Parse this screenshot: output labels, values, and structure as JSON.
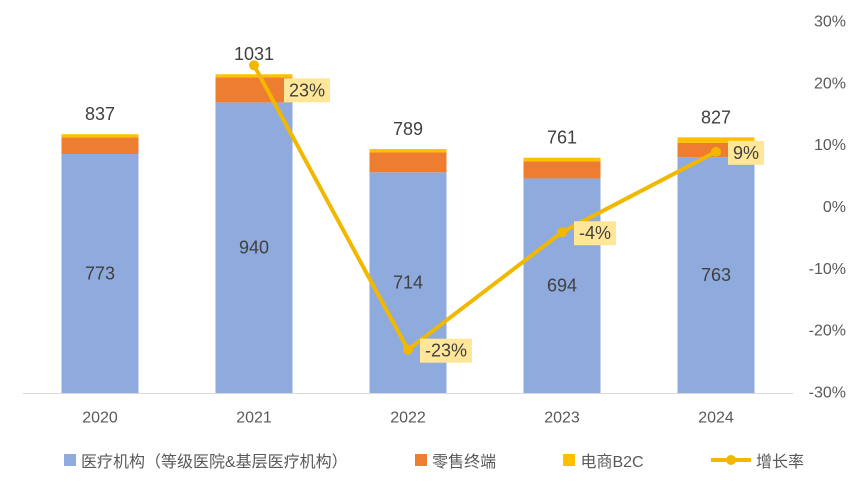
{
  "chart_data": {
    "type": "bar",
    "stacked": true,
    "categories": [
      "2020",
      "2021",
      "2022",
      "2023",
      "2024"
    ],
    "series": [
      {
        "name": "医疗机构（等级医院&基层医疗机构）",
        "type": "bar",
        "values": [
          773,
          940,
          714,
          694,
          763
        ],
        "color": "#8FAADC",
        "show_labels": true
      },
      {
        "name": "零售终端",
        "type": "bar",
        "values": [
          54,
          81,
          64,
          55,
          46
        ],
        "color": "#ED7D31"
      },
      {
        "name": "电商B2C",
        "type": "bar",
        "values": [
          10,
          10,
          11,
          12,
          18
        ],
        "color": "#FFC000"
      },
      {
        "name": "增长率",
        "type": "line",
        "axis": "right",
        "unit": "%",
        "values": [
          null,
          23,
          -23,
          -4,
          9
        ],
        "color": "#F2B800",
        "label_bg": "#FFE699"
      }
    ],
    "totals": [
      837,
      1031,
      789,
      761,
      827
    ],
    "ylim": [
      0,
      1200
    ],
    "y_axis_visible": false,
    "y2lim": [
      -30,
      30
    ],
    "y2_ticks": [
      "30%",
      "20%",
      "10%",
      "0%",
      "-10%",
      "-20%",
      "-30%"
    ],
    "grid": false,
    "legend": "bottom"
  }
}
